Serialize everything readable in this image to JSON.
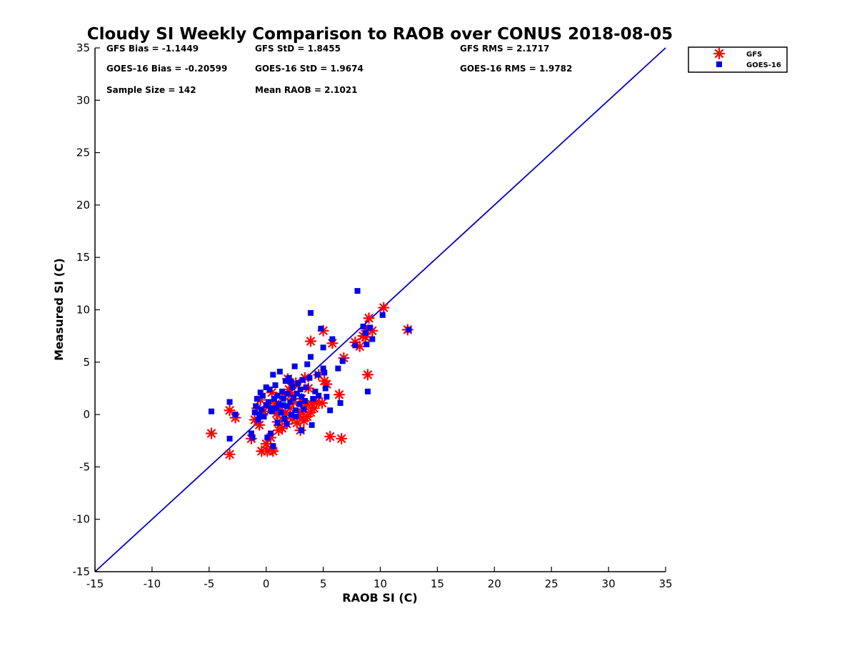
{
  "chart_data": {
    "type": "scatter",
    "title": "Cloudy SI Weekly Comparison to RAOB over CONUS 2018-08-05",
    "xlabel": "RAOB SI (C)",
    "ylabel": "Measured SI (C)",
    "xlim": [
      -15,
      35
    ],
    "ylim": [
      -15,
      35
    ],
    "xticks": [
      "-15",
      "-10",
      "-5",
      "0",
      "5",
      "10",
      "15",
      "20",
      "25",
      "30",
      "35"
    ],
    "yticks": [
      "-15",
      "-10",
      "-5",
      "0",
      "5",
      "10",
      "15",
      "20",
      "25",
      "30",
      "35"
    ],
    "grid": false,
    "legend_position": "outside top-right",
    "reference_line": {
      "x": [
        -15,
        35
      ],
      "y": [
        -15,
        35
      ],
      "color": "#0000cc"
    },
    "stats": [
      [
        "GFS Bias = -1.1449",
        "GFS StD = 1.8455",
        "GFS RMS = 2.1717"
      ],
      [
        "GOES-16 Bias = -0.20599",
        "GOES-16 StD = 1.9674",
        "GOES-16 RMS = 1.9782"
      ],
      [
        "Sample Size = 142",
        "Mean RAOB = 2.1021",
        ""
      ]
    ],
    "series": [
      {
        "name": "GFS",
        "marker": "asterisk",
        "color": "#ff0000",
        "points": [
          [
            -4.8,
            -1.8
          ],
          [
            -3.2,
            0.4
          ],
          [
            -3.2,
            -3.8
          ],
          [
            -2.7,
            -0.3
          ],
          [
            -1.3,
            -2.3
          ],
          [
            -1.0,
            -0.5
          ],
          [
            -0.8,
            0.6
          ],
          [
            -0.6,
            -1.0
          ],
          [
            -0.4,
            -3.5
          ],
          [
            -0.2,
            0.3
          ],
          [
            0.0,
            -2.8
          ],
          [
            0.1,
            -3.5
          ],
          [
            0.4,
            -2.2
          ],
          [
            0.5,
            -3.3
          ],
          [
            0.6,
            -3.5
          ],
          [
            0.2,
            0.8
          ],
          [
            0.8,
            1.0
          ],
          [
            1.0,
            -0.7
          ],
          [
            1.2,
            0.4
          ],
          [
            1.4,
            -1.3
          ],
          [
            1.5,
            1.8
          ],
          [
            1.7,
            0.2
          ],
          [
            1.8,
            -0.9
          ],
          [
            2.0,
            2.4
          ],
          [
            2.1,
            0.6
          ],
          [
            2.3,
            -0.4
          ],
          [
            2.4,
            1.2
          ],
          [
            2.6,
            3.0
          ],
          [
            2.7,
            -0.8
          ],
          [
            2.9,
            0.0
          ],
          [
            3.0,
            -1.5
          ],
          [
            3.1,
            1.5
          ],
          [
            3.2,
            0.5
          ],
          [
            3.4,
            3.5
          ],
          [
            3.5,
            0.9
          ],
          [
            3.6,
            -0.2
          ],
          [
            3.7,
            2.5
          ],
          [
            3.9,
            7.0
          ],
          [
            3.9,
            0.2
          ],
          [
            4.0,
            1.0
          ],
          [
            4.2,
            0.6
          ],
          [
            4.4,
            1.2
          ],
          [
            4.6,
            3.8
          ],
          [
            4.9,
            1.1
          ],
          [
            5.0,
            8.0
          ],
          [
            5.1,
            3.2
          ],
          [
            5.3,
            2.9
          ],
          [
            5.6,
            -2.1
          ],
          [
            5.8,
            6.8
          ],
          [
            6.4,
            1.9
          ],
          [
            6.6,
            -2.3
          ],
          [
            6.8,
            5.4
          ],
          [
            7.8,
            6.9
          ],
          [
            8.2,
            6.5
          ],
          [
            8.5,
            7.5
          ],
          [
            8.7,
            7.4
          ],
          [
            8.8,
            8.0
          ],
          [
            8.9,
            3.8
          ],
          [
            9.0,
            9.2
          ],
          [
            9.3,
            8.0
          ],
          [
            10.3,
            10.2
          ],
          [
            12.4,
            8.1
          ],
          [
            1.9,
            3.4
          ],
          [
            0.5,
            2.1
          ],
          [
            -0.5,
            1.4
          ],
          [
            1.1,
            -1.5
          ],
          [
            2.2,
            1.9
          ],
          [
            3.3,
            -0.6
          ],
          [
            0.9,
            0.1
          ],
          [
            1.6,
            -0.3
          ]
        ]
      },
      {
        "name": "GOES-16",
        "marker": "square",
        "color": "#0000ee",
        "points": [
          [
            -4.8,
            0.3
          ],
          [
            -3.2,
            1.2
          ],
          [
            -3.2,
            -2.3
          ],
          [
            -2.7,
            0.0
          ],
          [
            -1.3,
            -1.8
          ],
          [
            -1.2,
            -2.2
          ],
          [
            -1.0,
            0.2
          ],
          [
            -0.9,
            0.8
          ],
          [
            -0.8,
            1.5
          ],
          [
            -0.7,
            -0.5
          ],
          [
            -0.5,
            2.1
          ],
          [
            -0.4,
            0.5
          ],
          [
            -0.3,
            1.8
          ],
          [
            -0.2,
            -0.2
          ],
          [
            0.0,
            2.6
          ],
          [
            0.0,
            0.9
          ],
          [
            0.1,
            -2.2
          ],
          [
            0.2,
            1.2
          ],
          [
            0.3,
            2.4
          ],
          [
            0.4,
            -1.8
          ],
          [
            0.5,
            0.3
          ],
          [
            0.6,
            -3.0
          ],
          [
            0.7,
            1.5
          ],
          [
            0.8,
            2.8
          ],
          [
            0.9,
            0.6
          ],
          [
            1.0,
            -0.8
          ],
          [
            1.1,
            1.0
          ],
          [
            1.2,
            4.1
          ],
          [
            1.3,
            0.2
          ],
          [
            1.4,
            2.2
          ],
          [
            1.5,
            1.5
          ],
          [
            1.6,
            -0.4
          ],
          [
            1.7,
            3.2
          ],
          [
            1.8,
            0.8
          ],
          [
            1.9,
            2.0
          ],
          [
            2.0,
            3.5
          ],
          [
            2.1,
            1.2
          ],
          [
            2.2,
            0.0
          ],
          [
            2.3,
            2.6
          ],
          [
            2.4,
            1.6
          ],
          [
            2.5,
            4.6
          ],
          [
            2.6,
            0.4
          ],
          [
            2.7,
            2.0
          ],
          [
            2.8,
            3.0
          ],
          [
            2.9,
            1.0
          ],
          [
            3.0,
            2.4
          ],
          [
            3.1,
            1.7
          ],
          [
            3.2,
            3.3
          ],
          [
            3.3,
            0.5
          ],
          [
            3.4,
            1.3
          ],
          [
            3.5,
            2.6
          ],
          [
            3.6,
            4.8
          ],
          [
            3.8,
            3.5
          ],
          [
            3.9,
            9.7
          ],
          [
            3.9,
            5.5
          ],
          [
            4.0,
            -1.0
          ],
          [
            4.1,
            1.5
          ],
          [
            4.3,
            2.2
          ],
          [
            4.5,
            3.8
          ],
          [
            4.6,
            1.8
          ],
          [
            4.8,
            8.2
          ],
          [
            5.0,
            4.4
          ],
          [
            5.0,
            6.4
          ],
          [
            5.1,
            4.0
          ],
          [
            5.2,
            2.5
          ],
          [
            5.3,
            1.7
          ],
          [
            5.6,
            0.4
          ],
          [
            5.8,
            7.2
          ],
          [
            6.3,
            4.4
          ],
          [
            6.5,
            1.1
          ],
          [
            6.7,
            5.1
          ],
          [
            7.8,
            6.6
          ],
          [
            8.0,
            11.8
          ],
          [
            8.5,
            8.4
          ],
          [
            8.7,
            7.8
          ],
          [
            8.8,
            6.7
          ],
          [
            8.9,
            2.2
          ],
          [
            9.1,
            8.3
          ],
          [
            9.3,
            7.2
          ],
          [
            10.2,
            9.5
          ],
          [
            12.5,
            8.1
          ],
          [
            0.4,
            0.6
          ],
          [
            1.0,
            1.8
          ],
          [
            1.8,
            -0.9
          ],
          [
            2.2,
            3.1
          ],
          [
            0.6,
            3.8
          ],
          [
            -0.6,
            0.0
          ],
          [
            1.5,
            0.9
          ],
          [
            2.6,
            -0.2
          ],
          [
            3.1,
            -1.5
          ]
        ]
      }
    ]
  }
}
